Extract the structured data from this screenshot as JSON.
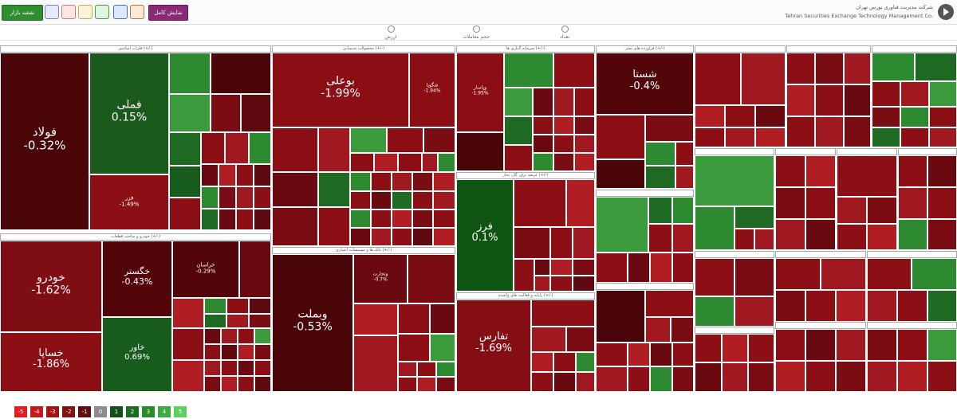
{
  "topbar": {
    "left_button": "نقشه بازار",
    "right_button": "نمایش کامل",
    "company": "شرکت مدیریت فناوری بورس تهران",
    "company_en": "Tehran Securities Exchange Technology Management Co."
  },
  "modes": [
    "ارزش",
    "حجم معاملات",
    "تعداد"
  ],
  "legend": [
    "-5",
    "-4",
    "-3",
    "-2",
    "-1",
    "0",
    "1",
    "2",
    "3",
    "4",
    "5"
  ],
  "colors": {
    "neg5": "#3d0408",
    "neg4": "#5c0a10",
    "neg3": "#7e0d14",
    "neg2": "#96131a",
    "neg1": "#b01d22",
    "zero": "#8c8c8c",
    "pos1": "#12501a",
    "pos2": "#1a6d22",
    "pos3": "#268c2c",
    "pos4": "#3dab3d",
    "pos5": "#5fd05f"
  },
  "sectors": [
    {
      "title": "فلزات اساسی (+/-)",
      "cells": [
        {
          "name": "فولاد",
          "pct": "-0.32%",
          "color": "#4a0508"
        },
        {
          "name": "فملی",
          "pct": "0.15%",
          "color": "#1a5a1d"
        },
        {
          "name": "فزر",
          "pct": "-1.49%",
          "color": "#8c0f15"
        }
      ]
    },
    {
      "title": "محصولات شیمیایی (+/-)",
      "cells": [
        {
          "name": "بوعلی",
          "pct": "-1.99%",
          "color": "#8a0e14"
        },
        {
          "name": "شگویا",
          "pct": "-1.94%",
          "color": "#8a0e14"
        }
      ]
    },
    {
      "title": "بانک ها و موسسات اعتباری (+/-)",
      "cells": [
        {
          "name": "وبملت",
          "pct": "-0.53%",
          "color": "#4a0508"
        },
        {
          "name": "وتجارت",
          "pct": "-0.7%",
          "color": "#6a0a10"
        }
      ]
    },
    {
      "title": "خودرو و ساخت قطعات (+/-)",
      "cells": [
        {
          "name": "خودرو",
          "pct": "-1.62%",
          "color": "#7f0d14"
        },
        {
          "name": "خساپا",
          "pct": "-1.86%",
          "color": "#8c0f15"
        },
        {
          "name": "خگستر",
          "pct": "-0.43%",
          "color": "#520609"
        },
        {
          "name": "خاور",
          "pct": "0.69%",
          "color": "#175c1d"
        },
        {
          "name": "خراسان",
          "pct": "-0.29%",
          "color": "#520609"
        }
      ]
    },
    {
      "title": "سرمایه گذاری ها (+/-)",
      "cells": [
        {
          "name": "وپاسار",
          "pct": "-1.95%",
          "color": "#8a0e14"
        }
      ]
    },
    {
      "title": "عرضه برق، گاز، بخار (+/-)",
      "cells": [
        {
          "name": "فرز",
          "pct": "0.1%",
          "color": "#0e5512"
        }
      ]
    },
    {
      "title": "رایانه و فعالیت های وابسته (+/-)",
      "cells": [
        {
          "name": "تفارس",
          "pct": "-1.69%",
          "color": "#850e14"
        }
      ]
    },
    {
      "title": "فراورده های نفتی (+/-)",
      "cells": [
        {
          "name": "شستا",
          "pct": "-0.4%",
          "color": "#520609"
        }
      ]
    }
  ]
}
